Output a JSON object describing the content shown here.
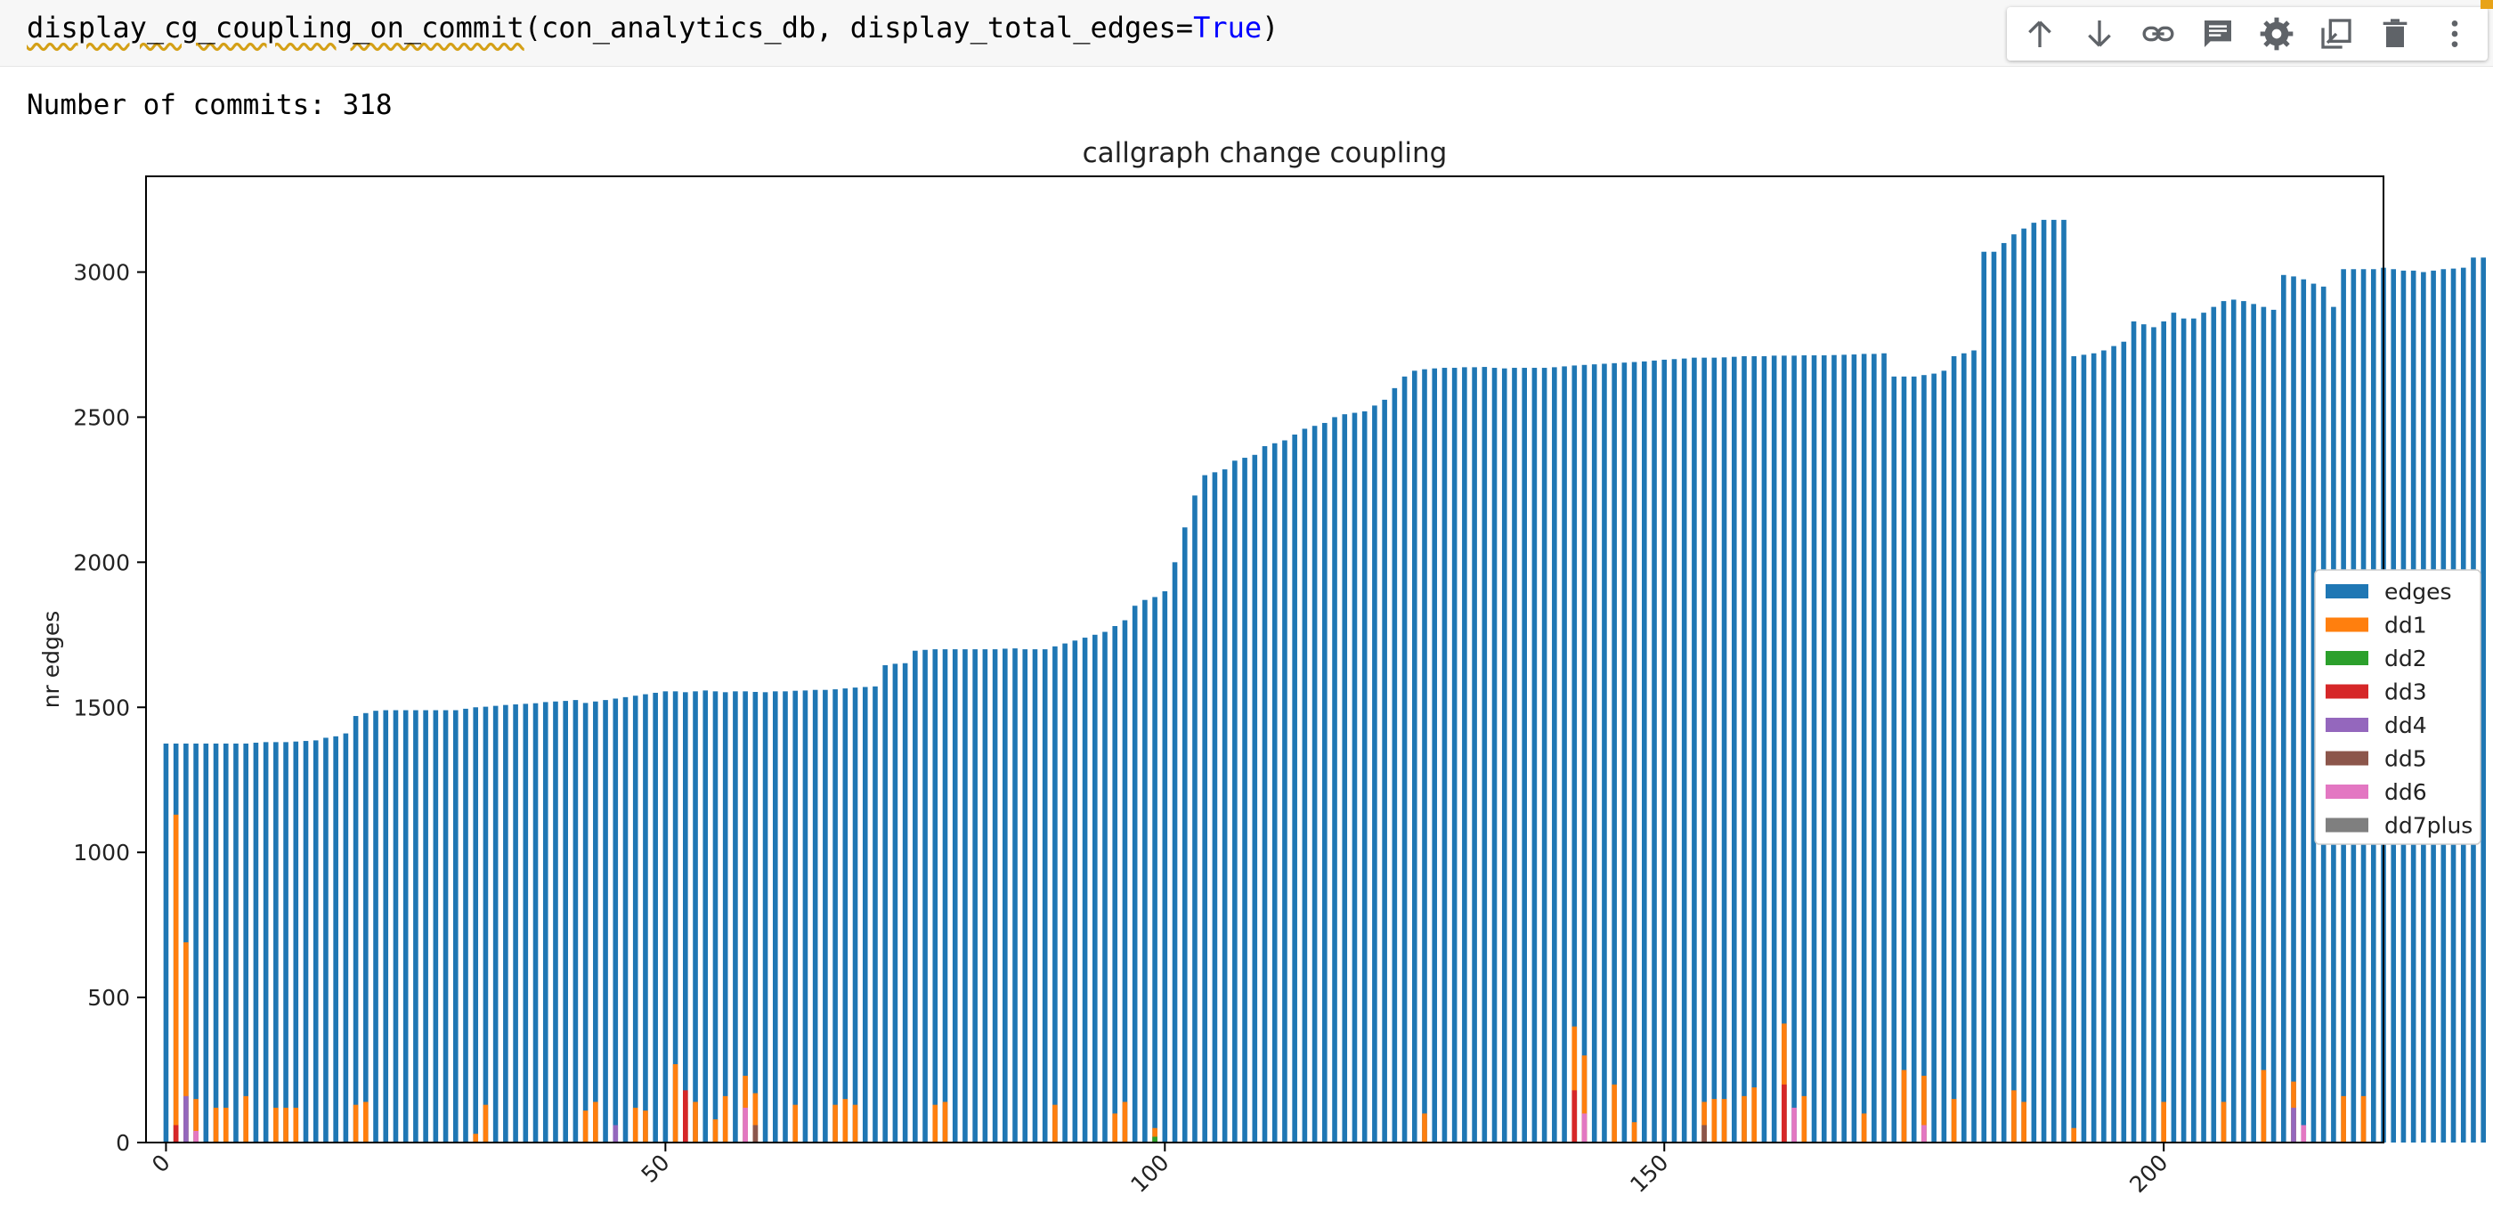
{
  "code": {
    "function": "display_cg_coupling_on_commit",
    "args": "(con_analytics_db, display_total_edges=",
    "keyword": "True",
    "close": ")"
  },
  "toolbar": {
    "items": [
      "move-up-icon",
      "move-down-icon",
      "link-icon",
      "comment-icon",
      "settings-icon",
      "mirror-cell-icon",
      "delete-icon",
      "more-options-icon"
    ]
  },
  "output": {
    "text": "Number of commits: 318"
  },
  "chart_data": {
    "type": "bar",
    "stacked": true,
    "title": "callgraph change coupling",
    "xlabel": "",
    "ylabel": "nr edges",
    "xlim": [
      -2,
      222
    ],
    "ylim": [
      0,
      3330
    ],
    "xticks": [
      0,
      50,
      100,
      150,
      200
    ],
    "yticks": [
      0,
      500,
      1000,
      1500,
      2000,
      2500,
      3000
    ],
    "legend_position": "right, outside plot",
    "series": [
      {
        "name": "edges",
        "color": "#1f77b4"
      },
      {
        "name": "dd1",
        "color": "#ff7f0e"
      },
      {
        "name": "dd2",
        "color": "#2ca02c"
      },
      {
        "name": "dd3",
        "color": "#d62728"
      },
      {
        "name": "dd4",
        "color": "#9467bd"
      },
      {
        "name": "dd5",
        "color": "#8c564b"
      },
      {
        "name": "dd6",
        "color": "#e377c2"
      },
      {
        "name": "dd7plus",
        "color": "#7f7f7f"
      }
    ],
    "edges_values": [
      1375,
      1375,
      1375,
      1375,
      1375,
      1375,
      1375,
      1375,
      1375,
      1378,
      1380,
      1380,
      1380,
      1382,
      1384,
      1386,
      1395,
      1400,
      1410,
      1470,
      1480,
      1488,
      1490,
      1490,
      1490,
      1490,
      1490,
      1490,
      1490,
      1490,
      1495,
      1500,
      1502,
      1505,
      1508,
      1510,
      1512,
      1514,
      1518,
      1520,
      1522,
      1525,
      1515,
      1520,
      1525,
      1530,
      1535,
      1540,
      1545,
      1550,
      1555,
      1555,
      1552,
      1555,
      1558,
      1555,
      1552,
      1555,
      1555,
      1553,
      1552,
      1555,
      1555,
      1557,
      1558,
      1560,
      1560,
      1562,
      1565,
      1568,
      1570,
      1572,
      1645,
      1650,
      1652,
      1695,
      1698,
      1700,
      1700,
      1700,
      1700,
      1700,
      1700,
      1700,
      1702,
      1703,
      1700,
      1700,
      1700,
      1710,
      1720,
      1730,
      1740,
      1750,
      1760,
      1780,
      1800,
      1850,
      1870,
      1880,
      1900,
      2000,
      2120,
      2230,
      2300,
      2310,
      2320,
      2350,
      2360,
      2370,
      2400,
      2410,
      2420,
      2440,
      2460,
      2470,
      2480,
      2500,
      2510,
      2515,
      2520,
      2540,
      2560,
      2600,
      2640,
      2660,
      2665,
      2668,
      2670,
      2670,
      2672,
      2672,
      2673,
      2670,
      2668,
      2670,
      2670,
      2670,
      2670,
      2672,
      2675,
      2678,
      2680,
      2682,
      2684,
      2686,
      2688,
      2690,
      2692,
      2695,
      2698,
      2700,
      2702,
      2705,
      2705,
      2705,
      2706,
      2708,
      2710,
      2710,
      2710,
      2712,
      2712,
      2712,
      2713,
      2713,
      2713,
      2714,
      2715,
      2716,
      2718,
      2718,
      2720,
      2640,
      2640,
      2640,
      2645,
      2650,
      2660,
      2710,
      2720,
      2730,
      3070,
      3070,
      3100,
      3130,
      3150,
      3170,
      3180,
      3180,
      3180,
      2710,
      2715,
      2720,
      2730,
      2745,
      2760,
      2830,
      2820,
      2810,
      2830,
      2860,
      2840,
      2840,
      2860,
      2880,
      2900,
      2905,
      2900,
      2890,
      2880,
      2870,
      2990,
      2985,
      2975,
      2960,
      2950,
      2880,
      3010,
      3010,
      3010,
      3010,
      3015,
      3010,
      3005,
      3005,
      3000,
      3005,
      3010,
      3012,
      3015,
      3050,
      3050
    ],
    "dd1_spikes": [
      [
        1,
        1130
      ],
      [
        2,
        690
      ],
      [
        3,
        150
      ],
      [
        5,
        120
      ],
      [
        6,
        120
      ],
      [
        8,
        160
      ],
      [
        11,
        120
      ],
      [
        12,
        120
      ],
      [
        13,
        120
      ],
      [
        19,
        130
      ],
      [
        20,
        140
      ],
      [
        31,
        30
      ],
      [
        32,
        130
      ],
      [
        42,
        110
      ],
      [
        43,
        140
      ],
      [
        47,
        120
      ],
      [
        48,
        110
      ],
      [
        51,
        270
      ],
      [
        52,
        140
      ],
      [
        53,
        140
      ],
      [
        55,
        80
      ],
      [
        56,
        160
      ],
      [
        58,
        230
      ],
      [
        59,
        170
      ],
      [
        63,
        130
      ],
      [
        67,
        130
      ],
      [
        68,
        150
      ],
      [
        69,
        130
      ],
      [
        77,
        130
      ],
      [
        78,
        140
      ],
      [
        89,
        130
      ],
      [
        95,
        100
      ],
      [
        96,
        140
      ],
      [
        99,
        50
      ],
      [
        126,
        100
      ],
      [
        141,
        400
      ],
      [
        142,
        300
      ],
      [
        145,
        200
      ],
      [
        147,
        70
      ],
      [
        154,
        140
      ],
      [
        155,
        150
      ],
      [
        156,
        150
      ],
      [
        158,
        160
      ],
      [
        159,
        190
      ],
      [
        162,
        410
      ],
      [
        164,
        160
      ],
      [
        170,
        100
      ],
      [
        174,
        250
      ],
      [
        176,
        230
      ],
      [
        179,
        150
      ],
      [
        185,
        180
      ],
      [
        186,
        140
      ],
      [
        191,
        50
      ],
      [
        200,
        140
      ],
      [
        206,
        140
      ],
      [
        210,
        250
      ],
      [
        213,
        210
      ],
      [
        218,
        160
      ],
      [
        220,
        160
      ]
    ],
    "minor_spikes": [
      [
        1,
        60,
        "#d62728"
      ],
      [
        2,
        160,
        "#9467bd"
      ],
      [
        3,
        40,
        "#e377c2"
      ],
      [
        45,
        60,
        "#9467bd"
      ],
      [
        52,
        180,
        "#d62728"
      ],
      [
        58,
        120,
        "#e377c2"
      ],
      [
        59,
        60,
        "#8c564b"
      ],
      [
        99,
        20,
        "#2ca02c"
      ],
      [
        141,
        180,
        "#d62728"
      ],
      [
        142,
        100,
        "#e377c2"
      ],
      [
        154,
        60,
        "#8c564b"
      ],
      [
        162,
        200,
        "#d62728"
      ],
      [
        163,
        120,
        "#e377c2"
      ],
      [
        176,
        60,
        "#e377c2"
      ],
      [
        213,
        120,
        "#9467bd"
      ],
      [
        214,
        60,
        "#e377c2"
      ]
    ]
  }
}
